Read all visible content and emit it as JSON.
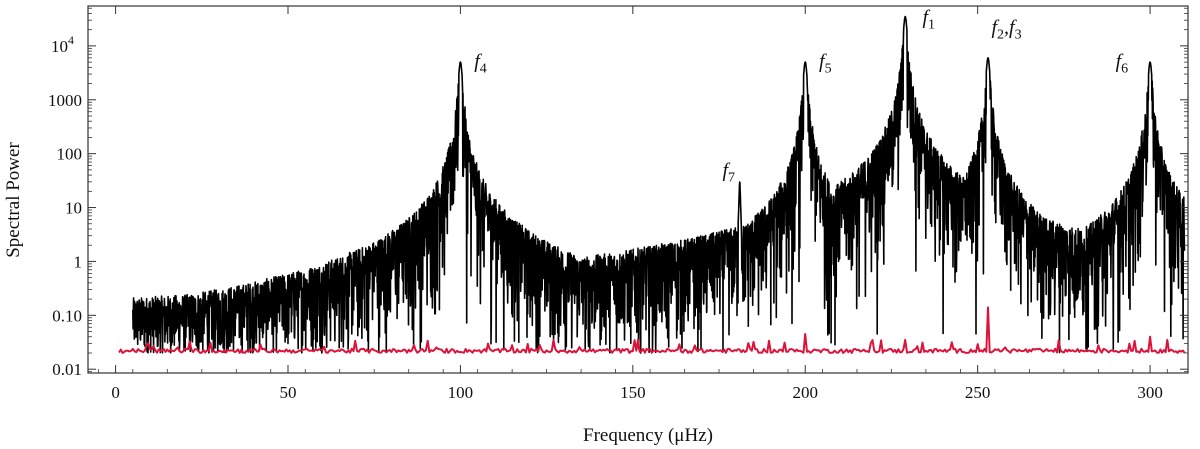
{
  "chart_data": {
    "type": "line",
    "title": "",
    "xlabel": "Frequency (μHz)",
    "ylabel": "Spectral Power",
    "xlim": [
      -8,
      311
    ],
    "ylim": [
      0.0085,
      55000
    ],
    "yscale": "log",
    "grid": false,
    "x_ticks": [
      {
        "value": 0,
        "label": "0"
      },
      {
        "value": 50,
        "label": "50"
      },
      {
        "value": 100,
        "label": "100"
      },
      {
        "value": 150,
        "label": "150"
      },
      {
        "value": 200,
        "label": "200"
      },
      {
        "value": 250,
        "label": "250"
      },
      {
        "value": 300,
        "label": "300"
      }
    ],
    "y_ticks": [
      {
        "value": 0.01,
        "label": "0.01"
      },
      {
        "value": 0.1,
        "label": "0.10"
      },
      {
        "value": 1,
        "label": "1"
      },
      {
        "value": 10,
        "label": "10"
      },
      {
        "value": 100,
        "label": "100"
      },
      {
        "value": 1000,
        "label": "1000"
      },
      {
        "value": 10000,
        "label": "10",
        "exp": "4"
      }
    ],
    "series": [
      {
        "color": "#000000",
        "noise_floor": 0.02,
        "x_range": [
          5,
          310
        ],
        "envelope": [
          [
            5,
            0.028
          ],
          [
            30,
            0.03
          ],
          [
            50,
            0.045
          ],
          [
            65,
            0.1
          ],
          [
            75,
            0.3
          ],
          [
            85,
            0.8
          ],
          [
            93,
            2.5
          ],
          [
            100,
            10
          ],
          [
            107,
            2.5
          ],
          [
            115,
            0.8
          ],
          [
            125,
            0.3
          ],
          [
            135,
            0.2
          ],
          [
            145,
            0.28
          ],
          [
            158,
            0.45
          ],
          [
            168,
            0.25
          ],
          [
            175,
            0.5
          ],
          [
            182,
            1.5
          ],
          [
            190,
            2.2
          ],
          [
            197,
            4
          ],
          [
            200,
            6
          ],
          [
            205,
            3
          ],
          [
            215,
            4
          ],
          [
            222,
            8
          ],
          [
            229,
            12
          ],
          [
            236,
            5
          ],
          [
            245,
            2.5
          ],
          [
            253,
            6
          ],
          [
            262,
            2
          ],
          [
            275,
            0.9
          ],
          [
            285,
            1.2
          ],
          [
            294,
            3
          ],
          [
            300,
            6
          ],
          [
            305,
            2
          ],
          [
            310,
            1
          ]
        ],
        "peaks": [
          {
            "x": 100,
            "y": 5000
          },
          {
            "x": 181,
            "y": 30
          },
          {
            "x": 200,
            "y": 5000
          },
          {
            "x": 229,
            "y": 35000
          },
          {
            "x": 253,
            "y": 6000
          },
          {
            "x": 300,
            "y": 5000
          }
        ]
      },
      {
        "color": "#dc143c",
        "baseline": 0.022,
        "x_range": [
          1,
          310
        ],
        "spikes": [
          {
            "x": 200,
            "y": 0.045
          },
          {
            "x": 229,
            "y": 0.035
          },
          {
            "x": 253,
            "y": 0.14
          },
          {
            "x": 300,
            "y": 0.04
          },
          {
            "x": 305,
            "y": 0.035
          }
        ]
      }
    ],
    "annotations": [
      {
        "text": "f",
        "sub": "1",
        "x": 234,
        "y": 26000
      },
      {
        "text": "f",
        "sub": "2",
        "text2": ",f",
        "sub2": "3",
        "x": 254,
        "y": 17000
      },
      {
        "text": "f",
        "sub": "4",
        "x": 104,
        "y": 4000
      },
      {
        "text": "f",
        "sub": "5",
        "x": 204,
        "y": 4000
      },
      {
        "text": "f",
        "sub": "6",
        "x": 290,
        "y": 4000
      },
      {
        "text": "f",
        "sub": "7",
        "x": 176,
        "y": 38
      }
    ]
  }
}
